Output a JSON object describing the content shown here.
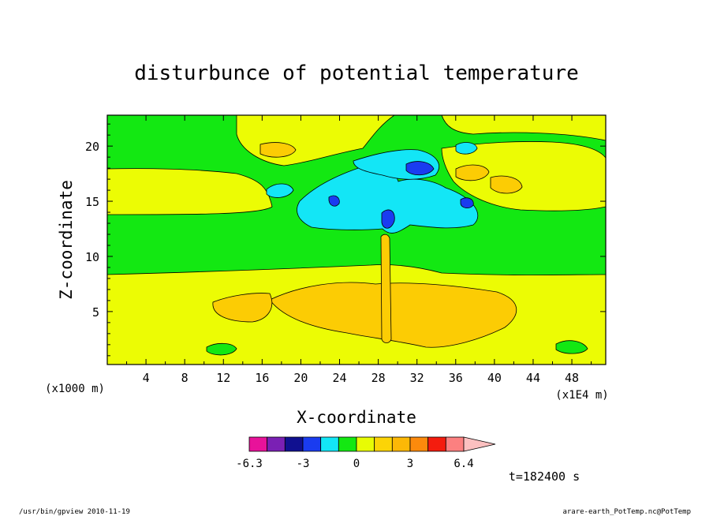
{
  "chart_data": {
    "type": "heatmap",
    "title": "disturbunce of potential temperature",
    "xlabel": "X-coordinate",
    "ylabel": "Z-coordinate",
    "x_unit_left": "(x1000 m)",
    "x_unit_right": "(x1E4 m)",
    "xlim": [
      0,
      51.5
    ],
    "ylim": [
      0.2,
      22.8
    ],
    "xticks": [
      4,
      8,
      12,
      16,
      20,
      24,
      28,
      32,
      36,
      40,
      44,
      48
    ],
    "yticks": [
      5,
      10,
      15,
      20
    ],
    "time_label": "t=182400 s",
    "colorbar": {
      "levels": [
        -6.3,
        -5.6,
        -4.7,
        -3,
        -2,
        -1,
        0,
        1,
        2,
        3,
        4,
        5,
        6.4
      ],
      "tick_labels": [
        "-6.3",
        "-3",
        "0",
        "3",
        "6.4"
      ],
      "tick_values": [
        -6.3,
        -3,
        0,
        3,
        6.4
      ],
      "colors": [
        "#e8129a",
        "#7a20b4",
        "#101090",
        "#1a3cf0",
        "#13e6f6",
        "#14e812",
        "#e8fc04",
        "#fcd406",
        "#fcb806",
        "#fc8a0c",
        "#f41c0e",
        "#fc8080"
      ],
      "over_color": "#fcc0c0"
    },
    "field_colors": {
      "background": "#13e812",
      "warm_band": "#ecfc04",
      "warm_core": "#fccc04",
      "cool": "#13e6f6",
      "cold": "#1a3cf0"
    }
  },
  "footer": {
    "left": "/usr/bin/gpview   2010-11-19",
    "right": "arare-earth_PotTemp.nc@PotTemp"
  }
}
